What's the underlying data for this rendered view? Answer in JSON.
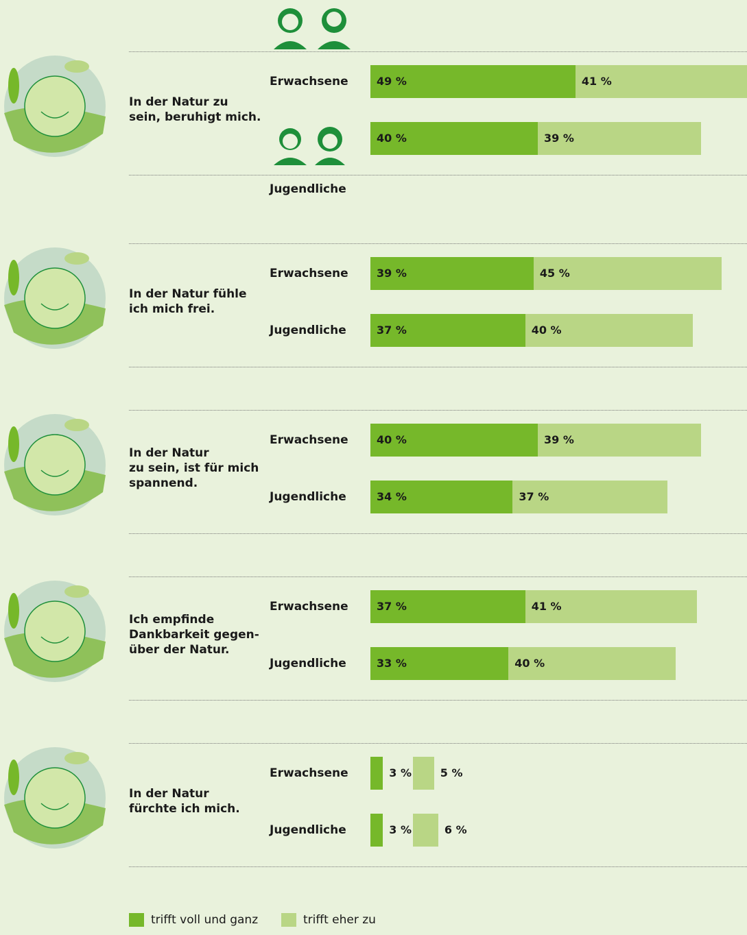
{
  "chart_data": {
    "type": "stacked-bar",
    "categories": [
      "In der Natur zu\nsein, beruhigt mich.",
      "In der Natur fühle\nich mich frei.",
      "In der Natur\nzu  sein, ist für mich\nspannend.",
      "Ich empfinde\nDankbarkeit gegen-\nüber der Natur.",
      "In der Natur\nfürchte ich mich."
    ],
    "groups": [
      "Erwachsene",
      "Jugendliche"
    ],
    "series": [
      {
        "name": "trifft voll und ganz",
        "color": "#76b82a",
        "values": [
          [
            49,
            40
          ],
          [
            39,
            37
          ],
          [
            40,
            34
          ],
          [
            37,
            33
          ],
          [
            3,
            3
          ]
        ],
        "value_labels": [
          [
            "49 %",
            "40 %"
          ],
          [
            "39 %",
            "37 %"
          ],
          [
            "40 %",
            "34 %"
          ],
          [
            "37 %",
            "33 %"
          ],
          [
            "3 %",
            "3 %"
          ]
        ]
      },
      {
        "name": "trifft eher zu",
        "color": "#b9d685",
        "values": [
          [
            41,
            39
          ],
          [
            45,
            40
          ],
          [
            39,
            37
          ],
          [
            41,
            40
          ],
          [
            5,
            6
          ]
        ],
        "value_labels": [
          [
            "41 %",
            "39 %"
          ],
          [
            "45 %",
            "40 %"
          ],
          [
            "39 %",
            "37 %"
          ],
          [
            "41 %",
            "40 %"
          ],
          [
            "5 %",
            "6 %"
          ]
        ]
      }
    ]
  }
}
